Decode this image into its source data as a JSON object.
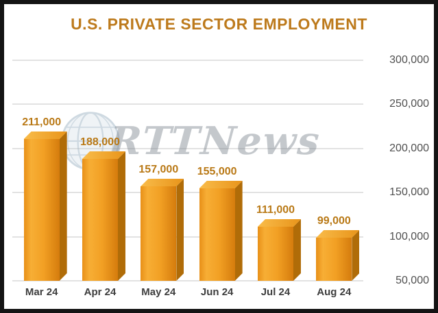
{
  "watermark": {
    "text": "RTTNews",
    "icon": "globe-icon"
  },
  "chart_data": {
    "type": "bar",
    "title": "U.S. PRIVATE SECTOR EMPLOYMENT",
    "categories": [
      "Mar 24",
      "Apr 24",
      "May 24",
      "Jun 24",
      "Jul 24",
      "Aug 24"
    ],
    "values": [
      211000,
      188000,
      157000,
      155000,
      111000,
      99000
    ],
    "value_labels": [
      "211,000",
      "188,000",
      "157,000",
      "155,000",
      "111,000",
      "99,000"
    ],
    "xlabel": "",
    "ylabel": "",
    "ylim": [
      50000,
      300000
    ],
    "yticks": [
      50000,
      100000,
      150000,
      200000,
      250000,
      300000
    ],
    "ytick_labels": [
      "50,000",
      "100,000",
      "150,000",
      "200,000",
      "250,000",
      "300,000"
    ],
    "grid": true,
    "legend": false,
    "bar_color": "#ED9C21",
    "value_label_color": "#B97916",
    "title_color": "#BD7A1C",
    "axis_label_color": "#4f4f4f"
  }
}
